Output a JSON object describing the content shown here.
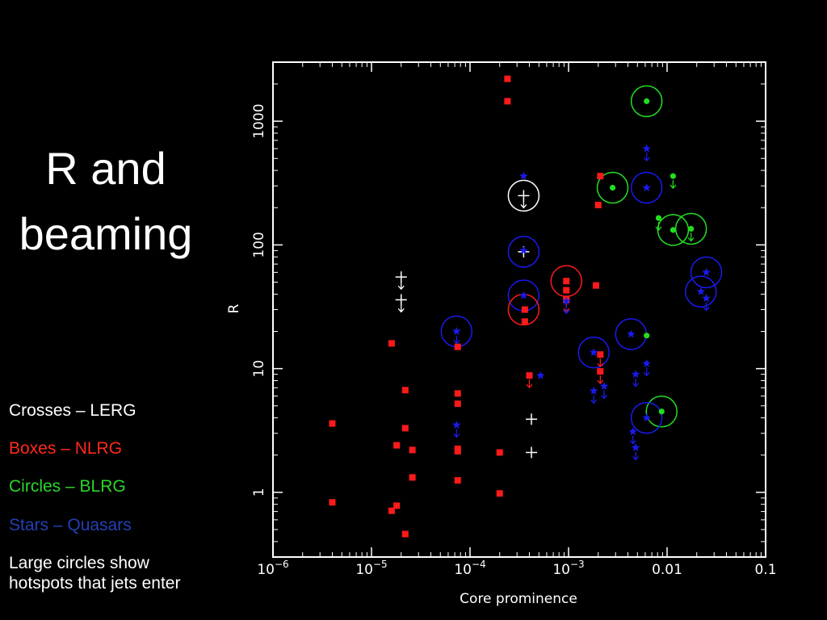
{
  "slide": {
    "title_line1": "R and",
    "title_line2": "beaming",
    "legend": {
      "crosses": "Crosses – LERG",
      "boxes": "Boxes – NLRG",
      "circles": "Circles – BLRG",
      "stars": "Stars – Quasars",
      "note_line1": "Large circles show",
      "note_line2": "hotspots that jets enter"
    }
  },
  "colors": {
    "background": "#000000",
    "LERG": "#ffffff",
    "NLRG": "#ff1a1a",
    "BLRG": "#22dd22",
    "QSO": "#1a1aee",
    "legend_blrg": "#2bd62b",
    "legend_qso": "#2440b5"
  },
  "chart_data": {
    "type": "scatter",
    "xlabel": "Core prominence",
    "ylabel": "R",
    "xscale": "log",
    "yscale": "log",
    "xlim": [
      1e-06,
      0.1
    ],
    "ylim": [
      0.3,
      3000
    ],
    "x_tick_labels": [
      "10^-6",
      "10^-5",
      "10^-4",
      "10^-3",
      "0.01",
      "0.1"
    ],
    "y_tick_labels": [
      "1",
      "10",
      "100",
      "1000"
    ],
    "series": [
      {
        "name": "LERG",
        "marker": "cross",
        "color": "#ffffff",
        "points": [
          {
            "x": 2e-05,
            "y": 55,
            "upper_limit": true
          },
          {
            "x": 2e-05,
            "y": 36,
            "upper_limit": true
          },
          {
            "x": 0.00035,
            "y": 250,
            "upper_limit": true
          },
          {
            "x": 0.00035,
            "y": 88
          },
          {
            "x": 0.00042,
            "y": 3.9
          },
          {
            "x": 0.00042,
            "y": 2.1
          }
        ]
      },
      {
        "name": "NLRG",
        "marker": "box",
        "color": "#ff1a1a",
        "points": [
          {
            "x": 0.00024,
            "y": 2200
          },
          {
            "x": 0.00024,
            "y": 1450
          },
          {
            "x": 0.0021,
            "y": 360
          },
          {
            "x": 0.002,
            "y": 210
          },
          {
            "x": 0.00095,
            "y": 51
          },
          {
            "x": 0.00095,
            "y": 43
          },
          {
            "x": 0.0019,
            "y": 47
          },
          {
            "x": 0.00036,
            "y": 30
          },
          {
            "x": 0.00036,
            "y": 24
          },
          {
            "x": 0.00095,
            "y": 36,
            "upper_limit": true
          },
          {
            "x": 1.6e-05,
            "y": 16
          },
          {
            "x": 7.5e-05,
            "y": 15
          },
          {
            "x": 0.0004,
            "y": 8.8,
            "upper_limit": true
          },
          {
            "x": 0.0021,
            "y": 13,
            "upper_limit": true
          },
          {
            "x": 0.0021,
            "y": 9.5,
            "upper_limit": true
          },
          {
            "x": 2.2e-05,
            "y": 6.7
          },
          {
            "x": 7.5e-05,
            "y": 6.3
          },
          {
            "x": 7.5e-05,
            "y": 5.2
          },
          {
            "x": 4e-06,
            "y": 3.6
          },
          {
            "x": 2.2e-05,
            "y": 3.3
          },
          {
            "x": 1.8e-05,
            "y": 2.4
          },
          {
            "x": 2.6e-05,
            "y": 2.2
          },
          {
            "x": 7.5e-05,
            "y": 2.25
          },
          {
            "x": 7.5e-05,
            "y": 2.15
          },
          {
            "x": 0.0002,
            "y": 2.1
          },
          {
            "x": 2.6e-05,
            "y": 1.32
          },
          {
            "x": 7.5e-05,
            "y": 1.25
          },
          {
            "x": 0.0002,
            "y": 0.98
          },
          {
            "x": 4e-06,
            "y": 0.83
          },
          {
            "x": 1.8e-05,
            "y": 0.78
          },
          {
            "x": 1.6e-05,
            "y": 0.71
          },
          {
            "x": 2.2e-05,
            "y": 0.46
          }
        ]
      },
      {
        "name": "BLRG",
        "marker": "circle",
        "color": "#22dd22",
        "points": [
          {
            "x": 0.0062,
            "y": 1450
          },
          {
            "x": 0.0028,
            "y": 290
          },
          {
            "x": 0.0115,
            "y": 360,
            "upper_limit": true
          },
          {
            "x": 0.0082,
            "y": 165,
            "upper_limit": true
          },
          {
            "x": 0.0115,
            "y": 132
          },
          {
            "x": 0.0175,
            "y": 135,
            "upper_limit": true
          },
          {
            "x": 0.0062,
            "y": 18.5
          },
          {
            "x": 0.0088,
            "y": 4.5
          }
        ]
      },
      {
        "name": "QSO",
        "marker": "star",
        "color": "#1a1aee",
        "points": [
          {
            "x": 0.00035,
            "y": 360
          },
          {
            "x": 0.0062,
            "y": 600,
            "upper_limit": true
          },
          {
            "x": 0.0062,
            "y": 290
          },
          {
            "x": 0.00035,
            "y": 90
          },
          {
            "x": 0.00035,
            "y": 39
          },
          {
            "x": 0.00095,
            "y": 35,
            "upper_limit": true
          },
          {
            "x": 7.3e-05,
            "y": 20,
            "upper_limit": true
          },
          {
            "x": 0.025,
            "y": 60
          },
          {
            "x": 0.022,
            "y": 42
          },
          {
            "x": 0.025,
            "y": 37,
            "upper_limit": true
          },
          {
            "x": 0.0043,
            "y": 19
          },
          {
            "x": 0.0018,
            "y": 13.5
          },
          {
            "x": 0.0062,
            "y": 11,
            "upper_limit": true
          },
          {
            "x": 0.0048,
            "y": 9,
            "upper_limit": true
          },
          {
            "x": 0.00052,
            "y": 8.8
          },
          {
            "x": 0.0023,
            "y": 7.2,
            "upper_limit": true
          },
          {
            "x": 0.0018,
            "y": 6.6,
            "upper_limit": true
          },
          {
            "x": 0.0062,
            "y": 4.0
          },
          {
            "x": 7.3e-05,
            "y": 3.5,
            "upper_limit": true
          },
          {
            "x": 0.0045,
            "y": 3.1,
            "upper_limit": true
          },
          {
            "x": 0.0048,
            "y": 2.3,
            "upper_limit": true
          }
        ]
      }
    ],
    "hotspot_circles": [
      {
        "x": 0.0062,
        "y": 1450,
        "color": "#22dd22"
      },
      {
        "x": 0.0028,
        "y": 290,
        "color": "#22dd22"
      },
      {
        "x": 0.0062,
        "y": 290,
        "color": "#1a1aee"
      },
      {
        "x": 0.00035,
        "y": 250,
        "color": "#ffffff"
      },
      {
        "x": 0.0115,
        "y": 132,
        "color": "#22dd22"
      },
      {
        "x": 0.0175,
        "y": 135,
        "color": "#22dd22"
      },
      {
        "x": 0.00035,
        "y": 88,
        "color": "#1a1aee"
      },
      {
        "x": 0.025,
        "y": 60,
        "color": "#1a1aee"
      },
      {
        "x": 0.00095,
        "y": 51,
        "color": "#ff1a1a"
      },
      {
        "x": 0.022,
        "y": 42,
        "color": "#1a1aee"
      },
      {
        "x": 0.00035,
        "y": 39,
        "color": "#1a1aee"
      },
      {
        "x": 0.00035,
        "y": 30,
        "color": "#ff1a1a"
      },
      {
        "x": 7.3e-05,
        "y": 20,
        "color": "#1a1aee"
      },
      {
        "x": 0.0043,
        "y": 19,
        "color": "#1a1aee"
      },
      {
        "x": 0.0018,
        "y": 13.5,
        "color": "#1a1aee"
      },
      {
        "x": 0.0088,
        "y": 4.5,
        "color": "#22dd22"
      },
      {
        "x": 0.0062,
        "y": 4.0,
        "color": "#1a1aee"
      }
    ]
  }
}
